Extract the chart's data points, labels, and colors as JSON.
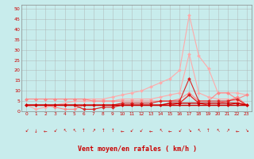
{
  "xlabel": "Vent moyen/en rafales ( km/h )",
  "bg_color": "#c8ecec",
  "grid_color": "#aaaaaa",
  "xlim": [
    -0.5,
    23.5
  ],
  "ylim": [
    0,
    52
  ],
  "yticks": [
    0,
    5,
    10,
    15,
    20,
    25,
    30,
    35,
    40,
    45,
    50
  ],
  "xticks": [
    0,
    1,
    2,
    3,
    4,
    5,
    6,
    7,
    8,
    9,
    10,
    11,
    12,
    13,
    14,
    15,
    16,
    17,
    18,
    19,
    20,
    21,
    22,
    23
  ],
  "series": [
    {
      "color": "#ffaaaa",
      "lw": 0.8,
      "marker": "D",
      "ms": 2.0,
      "y": [
        6,
        6,
        6,
        6,
        6,
        6,
        6,
        6,
        6,
        7,
        8,
        9,
        10,
        12,
        14,
        16,
        20,
        47,
        27,
        21,
        9,
        9,
        9,
        8
      ]
    },
    {
      "color": "#ffaaaa",
      "lw": 0.8,
      "marker": "D",
      "ms": 2.0,
      "y": [
        3,
        1,
        2,
        3,
        4,
        5,
        5,
        5,
        5,
        5,
        6,
        6,
        6,
        6,
        7,
        8,
        9,
        28,
        9,
        7,
        6,
        6,
        5,
        3
      ]
    },
    {
      "color": "#ff8888",
      "lw": 0.8,
      "marker": "D",
      "ms": 2.0,
      "y": [
        6,
        6,
        6,
        6,
        6,
        6,
        6,
        5,
        5,
        5,
        5,
        5,
        5,
        5,
        5,
        5,
        6,
        9,
        5,
        5,
        9,
        9,
        6,
        8
      ]
    },
    {
      "color": "#ff8888",
      "lw": 0.8,
      "marker": "D",
      "ms": 2.0,
      "y": [
        3,
        3,
        3,
        2,
        1,
        1,
        3,
        3,
        3,
        3,
        3,
        3,
        3,
        3,
        3,
        4,
        4,
        8,
        4,
        4,
        4,
        5,
        7,
        3
      ]
    },
    {
      "color": "#dd2222",
      "lw": 0.8,
      "marker": "D",
      "ms": 2.0,
      "y": [
        3,
        3,
        3,
        3,
        3,
        3,
        3,
        3,
        3,
        3,
        4,
        4,
        4,
        4,
        5,
        5,
        5,
        16,
        5,
        5,
        5,
        5,
        6,
        3
      ]
    },
    {
      "color": "#dd2222",
      "lw": 0.8,
      "marker": "D",
      "ms": 2.0,
      "y": [
        3,
        3,
        3,
        3,
        3,
        3,
        1,
        1,
        2,
        2,
        3,
        3,
        3,
        3,
        3,
        3,
        4,
        8,
        4,
        3,
        3,
        3,
        4,
        3
      ]
    },
    {
      "color": "#cc0000",
      "lw": 1.0,
      "marker": "D",
      "ms": 1.5,
      "y": [
        3,
        3,
        3,
        3,
        3,
        3,
        3,
        3,
        3,
        3,
        3,
        3,
        3,
        3,
        3,
        4,
        4,
        4,
        4,
        4,
        4,
        4,
        4,
        3
      ]
    },
    {
      "color": "#cc0000",
      "lw": 1.0,
      "marker": "D",
      "ms": 1.5,
      "y": [
        3,
        3,
        3,
        3,
        3,
        3,
        3,
        3,
        3,
        3,
        3,
        3,
        3,
        3,
        3,
        3,
        3,
        3,
        3,
        3,
        3,
        3,
        3,
        3
      ]
    }
  ],
  "wind_arrows": {
    "color": "#cc0000",
    "arrows": [
      "↙",
      "↓",
      "←",
      "↙",
      "↖",
      "↖",
      "↑",
      "↗",
      "↑",
      "↑",
      "←",
      "↙",
      "↙",
      "←",
      "↖",
      "←",
      "↙",
      "↘",
      "↖",
      "↑",
      "↖",
      "↗",
      "←",
      "↘"
    ]
  }
}
